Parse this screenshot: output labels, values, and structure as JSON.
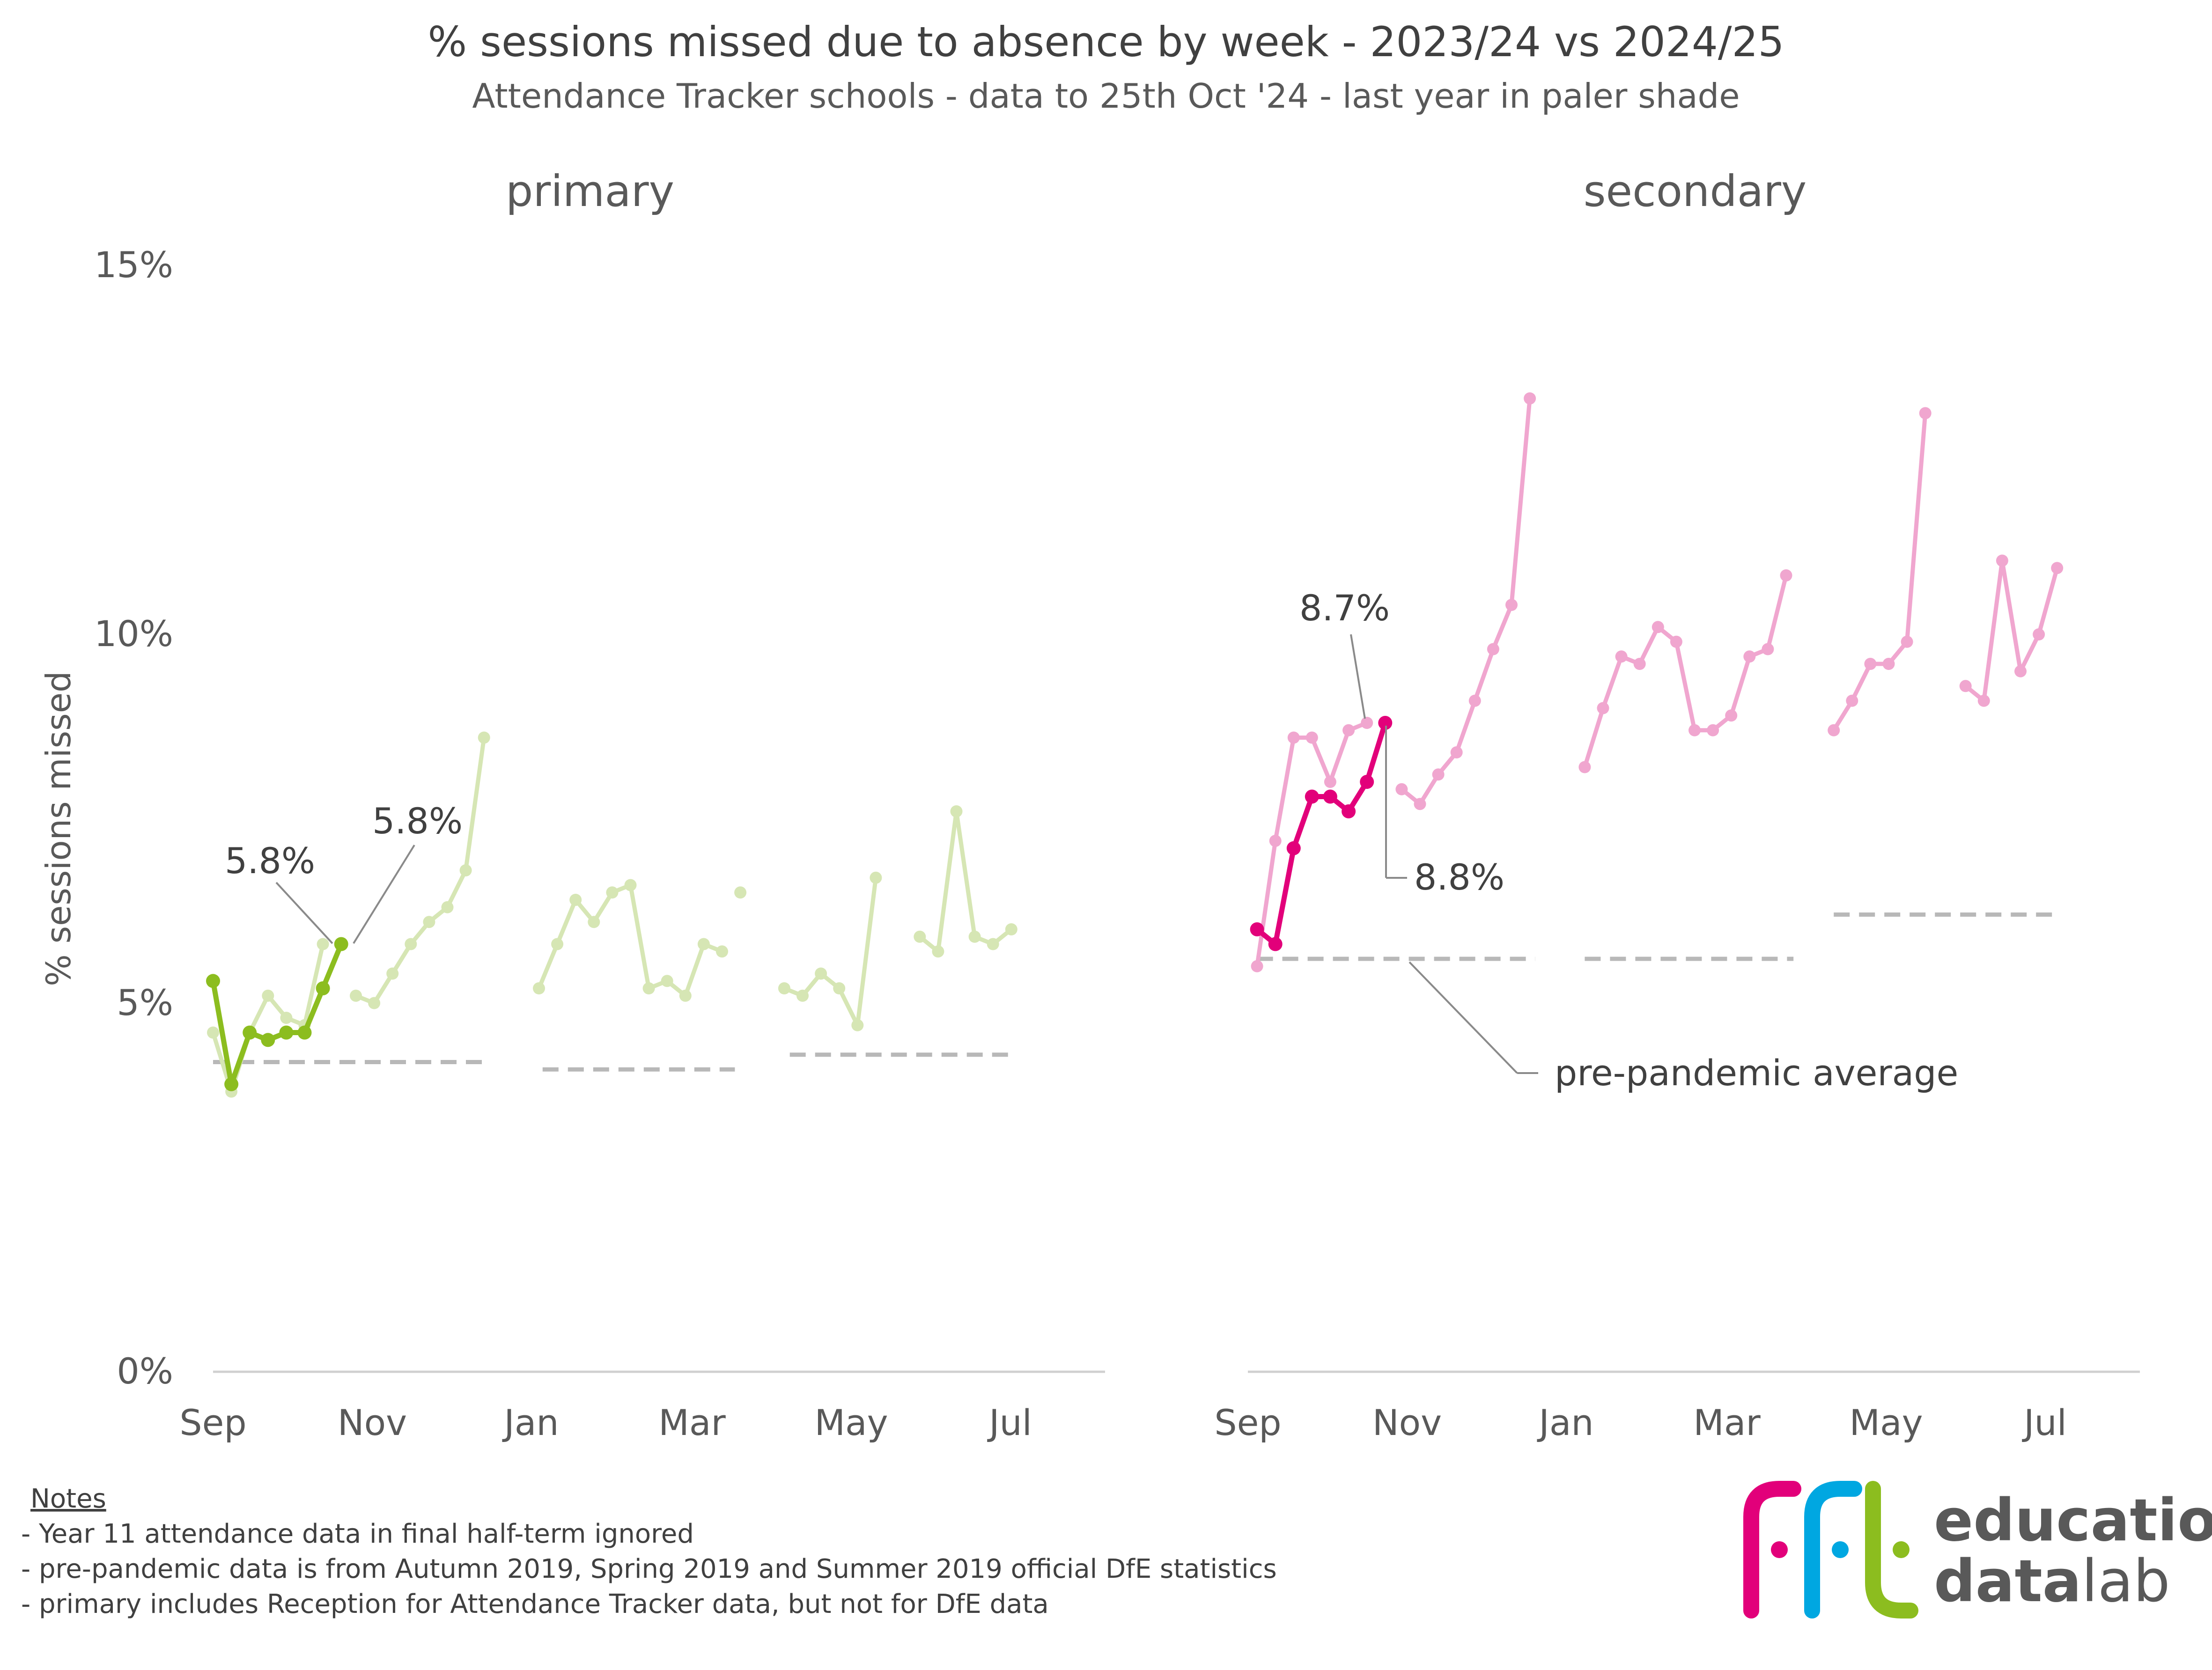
{
  "title": "% sessions missed due to absence by week - 2023/24 vs 2024/25",
  "subtitle": "Attendance Tracker schools - data to 25th Oct '24 - last year in paler shade",
  "y_axis_label": "% sessions missed",
  "y_ticks": [
    "0%",
    "5%",
    "10%",
    "15%"
  ],
  "x_ticks": [
    "Sep",
    "Nov",
    "Jan",
    "Mar",
    "May",
    "Jul"
  ],
  "colors": {
    "primary_current": "#8cbd1f",
    "primary_last": "#d6e6b4",
    "secondary_current": "#e2007a",
    "secondary_last": "#f0a6cf",
    "prepandemic": "#b8b8b8",
    "axis": "#d0d0d0",
    "logo_pink": "#e2007a",
    "logo_blue": "#00a7e1",
    "logo_green": "#8cbd1f"
  },
  "annotations": {
    "primary_last_label": "5.8%",
    "primary_current_label": "5.8%",
    "secondary_last_label": "8.7%",
    "secondary_current_label": "8.8%",
    "prepandemic_label": "pre-pandemic average"
  },
  "notes": {
    "heading": "Notes",
    "lines": [
      "-  Year 11 attendance data in final half-term ignored",
      "-  pre-pandemic data is from Autumn 2019, Spring 2019 and Summer 2019 official DfE statistics",
      "-  primary includes Reception for Attendance Tracker data, but not for DfE data"
    ]
  },
  "logo": {
    "line1": "education",
    "line2_bold": "data",
    "line2_light": "lab"
  },
  "chart_data": [
    {
      "type": "line",
      "title": "primary",
      "ylabel": "% sessions missed",
      "ylim": [
        0,
        15
      ],
      "xlim": [
        0,
        48
      ],
      "x_tick_positions": [
        0,
        8.7,
        17.4,
        26.1,
        34.8,
        43.5
      ],
      "x_tick_labels": [
        "Sep",
        "Nov",
        "Jan",
        "Mar",
        "May",
        "Jul"
      ],
      "grid": false,
      "series": [
        {
          "role": "last",
          "segments": [
            {
              "x": [
                0,
                1,
                2,
                3,
                4,
                5,
                6
              ],
              "y": [
                4.6,
                3.8,
                4.6,
                5.1,
                4.8,
                4.7,
                5.8
              ]
            },
            {
              "x": [
                7.8,
                8.8,
                9.8,
                10.8,
                11.8,
                12.8,
                13.8,
                14.8
              ],
              "y": [
                5.1,
                5.0,
                5.4,
                5.8,
                6.1,
                6.3,
                6.8,
                8.6
              ]
            },
            {
              "x": [
                17.8,
                18.8,
                19.8,
                20.8,
                21.8,
                22.8,
                23.8,
                24.8,
                25.8,
                26.8,
                27.8
              ],
              "y": [
                5.2,
                5.8,
                6.4,
                6.1,
                6.5,
                6.6,
                5.2,
                5.3,
                5.1,
                5.8,
                5.7
              ]
            },
            {
              "x": [
                28.8
              ],
              "y": [
                6.5
              ]
            },
            {
              "x": [
                31.2,
                32.2,
                33.2,
                34.2,
                35.2,
                36.2
              ],
              "y": [
                5.2,
                5.1,
                5.4,
                5.2,
                4.7,
                6.7
              ]
            },
            {
              "x": [
                38.6,
                39.6,
                40.6,
                41.6,
                42.6,
                43.6
              ],
              "y": [
                5.9,
                5.7,
                7.6,
                5.9,
                5.8,
                6.0
              ]
            }
          ]
        },
        {
          "role": "current",
          "segments": [
            {
              "x": [
                0,
                1,
                2,
                3,
                4,
                5,
                6,
                7
              ],
              "y": [
                5.3,
                3.9,
                4.6,
                4.5,
                4.6,
                4.6,
                5.2,
                5.8
              ]
            }
          ]
        },
        {
          "role": "prepandemic",
          "segments": [
            {
              "x": [
                0,
                15
              ],
              "y": [
                4.2,
                4.2
              ]
            },
            {
              "x": [
                18,
                28.5
              ],
              "y": [
                4.1,
                4.1
              ]
            },
            {
              "x": [
                31.5,
                43.5
              ],
              "y": [
                4.3,
                4.3
              ]
            }
          ]
        }
      ]
    },
    {
      "type": "line",
      "title": "secondary",
      "ylim": [
        0,
        15
      ],
      "xlim": [
        0,
        48
      ],
      "x_tick_positions": [
        0,
        8.7,
        17.4,
        26.1,
        34.8,
        43.5
      ],
      "x_tick_labels": [
        "Sep",
        "Nov",
        "Jan",
        "Mar",
        "May",
        "Jul"
      ],
      "grid": false,
      "series": [
        {
          "role": "last",
          "segments": [
            {
              "x": [
                0.5,
                1.5,
                2.5,
                3.5,
                4.5,
                5.5,
                6.5
              ],
              "y": [
                5.5,
                7.2,
                8.6,
                8.6,
                8.0,
                8.7,
                8.8
              ]
            },
            {
              "x": [
                8.4,
                9.4,
                10.4,
                11.4,
                12.4,
                13.4,
                14.4,
                15.4
              ],
              "y": [
                7.9,
                7.7,
                8.1,
                8.4,
                9.1,
                9.8,
                10.4,
                13.2
              ]
            },
            {
              "x": [
                18.4,
                19.4,
                20.4,
                21.4,
                22.4,
                23.4,
                24.4,
                25.4,
                26.4,
                27.4,
                28.4,
                29.4
              ],
              "y": [
                8.2,
                9.0,
                9.7,
                9.6,
                10.1,
                9.9,
                8.7,
                8.7,
                8.9,
                9.7,
                9.8,
                10.8
              ]
            },
            {
              "x": [
                32.0,
                33.0,
                34.0,
                35.0,
                36.0,
                37.0
              ],
              "y": [
                8.7,
                9.1,
                9.6,
                9.6,
                9.9,
                13.0
              ]
            },
            {
              "x": [
                39.2,
                40.2,
                41.2,
                42.2,
                43.2,
                44.2
              ],
              "y": [
                9.3,
                9.1,
                11.0,
                9.5,
                10.0,
                10.9
              ]
            }
          ]
        },
        {
          "role": "current",
          "segments": [
            {
              "x": [
                0.5,
                1.5,
                2.5,
                3.5,
                4.5,
                5.5,
                6.5,
                7.5
              ],
              "y": [
                6.0,
                5.8,
                7.1,
                7.8,
                7.8,
                7.6,
                8.0,
                8.8
              ]
            }
          ]
        },
        {
          "role": "prepandemic",
          "segments": [
            {
              "x": [
                0.5,
                15.7
              ],
              "y": [
                5.6,
                5.6
              ]
            },
            {
              "x": [
                18.4,
                29.8
              ],
              "y": [
                5.6,
                5.6
              ]
            },
            {
              "x": [
                32.0,
                44.3
              ],
              "y": [
                6.2,
                6.2
              ]
            }
          ]
        }
      ]
    }
  ]
}
